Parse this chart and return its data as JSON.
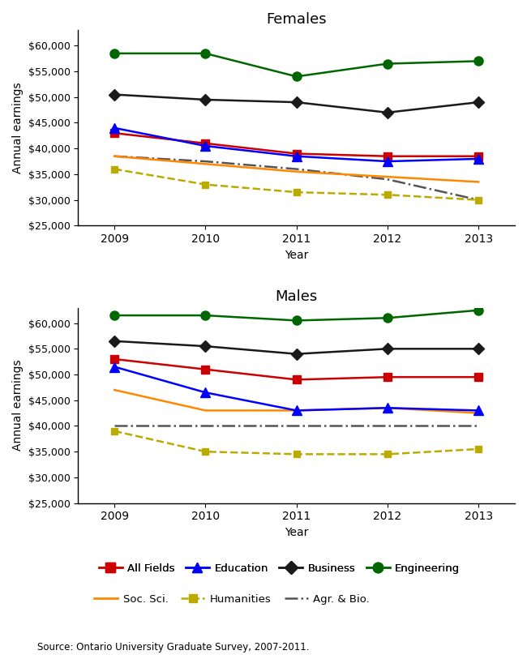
{
  "years": [
    2009,
    2010,
    2011,
    2012,
    2013
  ],
  "females": {
    "all_fields": [
      43000,
      41000,
      39000,
      38500,
      38500
    ],
    "education": [
      44000,
      40500,
      38500,
      37500,
      38000
    ],
    "business": [
      50500,
      49500,
      49000,
      47000,
      49000
    ],
    "engineering": [
      58500,
      58500,
      54000,
      56500,
      57000
    ],
    "soc_sci": [
      38500,
      37000,
      35500,
      34500,
      33500
    ],
    "humanities": [
      36000,
      33000,
      31500,
      31000,
      30000
    ],
    "agr_bio": [
      38500,
      37500,
      36000,
      34000,
      30000
    ]
  },
  "males": {
    "all_fields": [
      53000,
      51000,
      49000,
      49500,
      49500
    ],
    "education": [
      51500,
      46500,
      43000,
      43500,
      43000
    ],
    "business": [
      56500,
      55500,
      54000,
      55000,
      55000
    ],
    "engineering": [
      61500,
      61500,
      60500,
      61000,
      62500
    ],
    "soc_sci": [
      47000,
      43000,
      43000,
      43500,
      42500
    ],
    "humanities": [
      39000,
      35000,
      34500,
      34500,
      35500
    ],
    "agr_bio": [
      40000,
      40000,
      40000,
      40000,
      40000
    ]
  },
  "colors": {
    "all_fields": "#cc0000",
    "education": "#0000ff",
    "business": "#1a1a1a",
    "engineering": "#006600",
    "soc_sci": "#ff8800",
    "humanities": "#bbaa00",
    "agr_bio": "#555555"
  },
  "ylim": [
    25000,
    63000
  ],
  "yticks": [
    25000,
    30000,
    35000,
    40000,
    45000,
    50000,
    55000,
    60000
  ],
  "ylabel": "Annual earnings",
  "xlabel": "Year",
  "title_females": "Females",
  "title_males": "Males",
  "source": "Source: Ontario University Graduate Survey, 2007-2011.",
  "legend": {
    "all_fields": "All Fields",
    "education": "Education",
    "business": "Business",
    "engineering": "Engineering",
    "soc_sci": "Soc. Sci.",
    "humanities": "Humanities",
    "agr_bio": "Agr. & Bio."
  }
}
